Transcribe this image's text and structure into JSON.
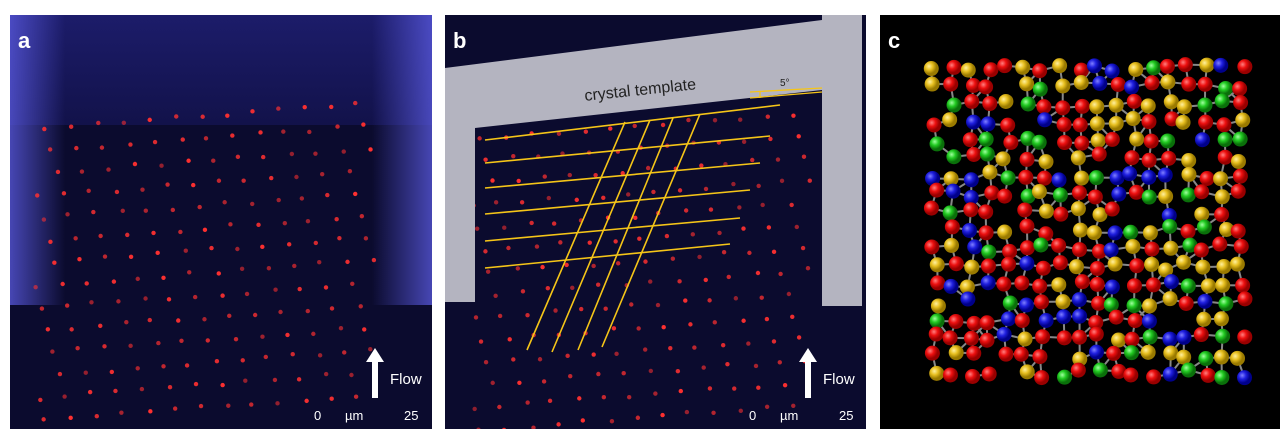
{
  "panels": [
    {
      "label": "a",
      "flow_label": "Flow",
      "scale_bar": {
        "start": "0",
        "unit": "µm",
        "end": "25"
      }
    },
    {
      "label": "b",
      "template_label": "crystal template",
      "angle_label": "5°",
      "flow_label": "Flow",
      "scale_bar": {
        "start": "0",
        "unit": "µm",
        "end": "25"
      }
    },
    {
      "label": "c"
    }
  ]
}
